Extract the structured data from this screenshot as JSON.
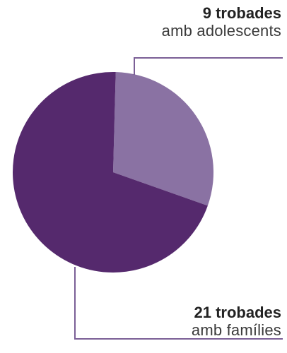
{
  "chart_data": {
    "type": "pie",
    "slices": [
      {
        "value": 9,
        "color": "#8a72a3"
      },
      {
        "value": 21,
        "color": "#55296d"
      }
    ],
    "labels": [
      {
        "bold": "9 trobades",
        "text": "amb adolescents"
      },
      {
        "bold": "21 trobades",
        "text": "amb famílies"
      }
    ],
    "leader_color": "#7b5f96"
  }
}
